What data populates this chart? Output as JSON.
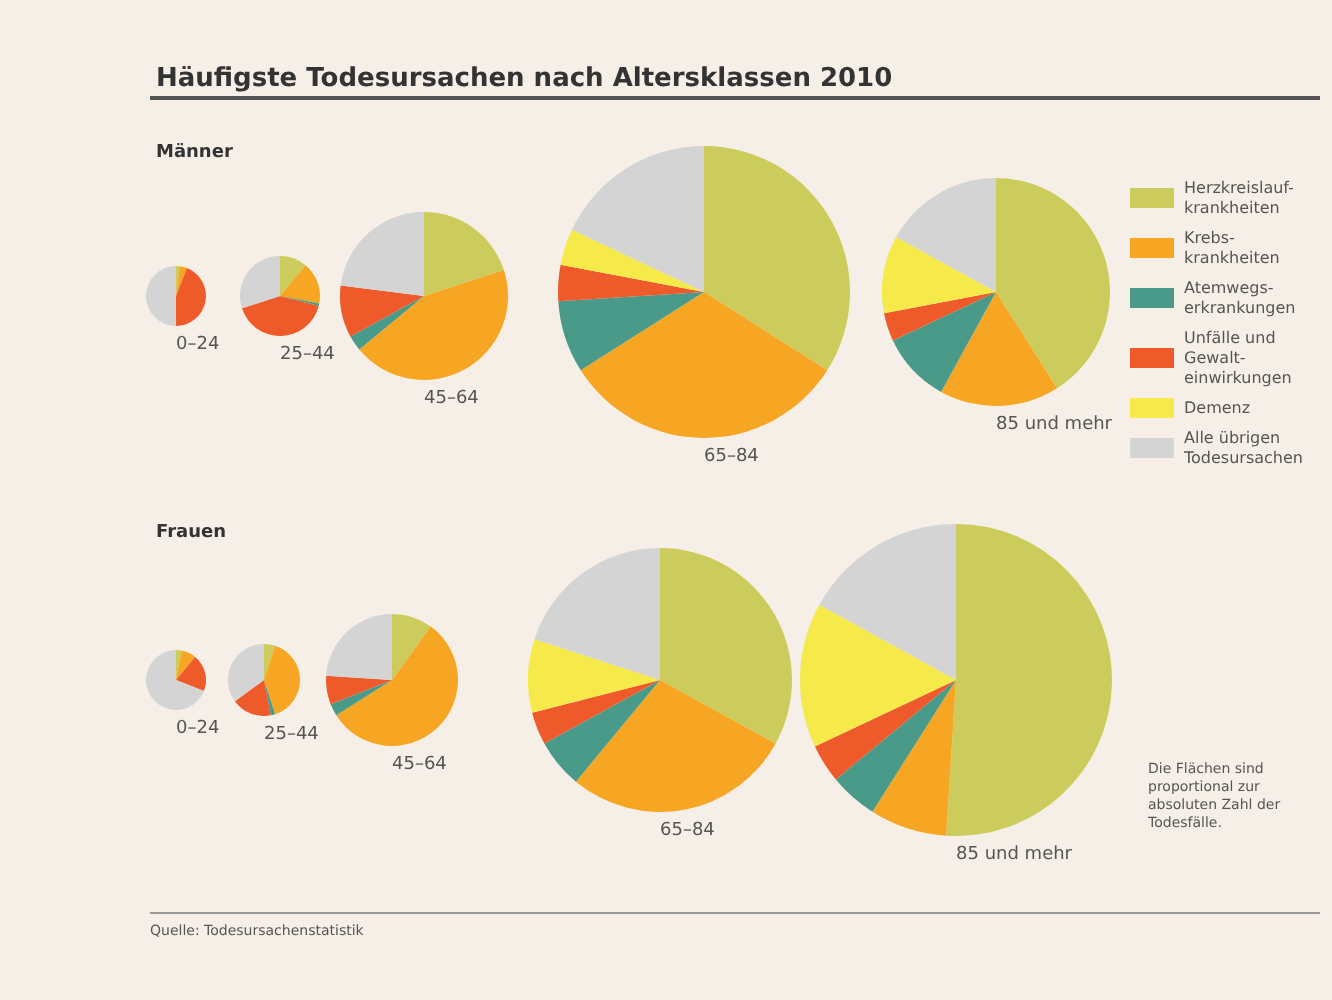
{
  "chart_data": {
    "type": "pie",
    "title": "Häufigste Todesursachen nach Altersklassen 2010",
    "legend": "right",
    "categories": [
      "Herzkreislauf-krankheiten",
      "Krebs-krankheiten",
      "Atemwegs-erkrankungen",
      "Unfälle und Gewalt-einwirkungen",
      "Demenz",
      "Alle übrigen Todesursachen"
    ],
    "colors": [
      "#cccc5c",
      "#f6a623",
      "#4a9a8a",
      "#ee5a2a",
      "#f5ea4a",
      "#d4d4d4"
    ],
    "series": [
      {
        "name": "0–24",
        "values": [
          2,
          4,
          0,
          44,
          0,
          50
        ]
      },
      {
        "name": "25–44",
        "values": [
          11,
          17,
          1,
          41,
          0,
          30
        ]
      },
      {
        "name": "45–64",
        "values": [
          20,
          44,
          3,
          10,
          0,
          23
        ]
      },
      {
        "name": "65–84",
        "values": [
          34,
          32,
          8,
          4,
          4,
          18
        ]
      },
      {
        "name": "85 und mehr",
        "values": [
          41,
          17,
          10,
          4,
          11,
          17
        ]
      },
      {
        "name": "0–24",
        "values": [
          3,
          8,
          0,
          20,
          0,
          69
        ]
      },
      {
        "name": "25–44",
        "values": [
          5,
          40,
          2,
          18,
          0,
          35
        ]
      },
      {
        "name": "45–64",
        "values": [
          10,
          56,
          3,
          7,
          0,
          24
        ]
      },
      {
        "name": "65–84",
        "values": [
          33,
          28,
          6,
          4,
          9,
          20
        ]
      },
      {
        "name": "85 und mehr",
        "values": [
          51,
          8,
          5,
          4,
          15,
          17
        ]
      }
    ],
    "annotations": [
      "Männer",
      "Frauen",
      "Die Flächen sind proportional zur absoluten Zahl der Todesfälle.",
      "Quelle: Todesursachenstatistik"
    ]
  }
}
